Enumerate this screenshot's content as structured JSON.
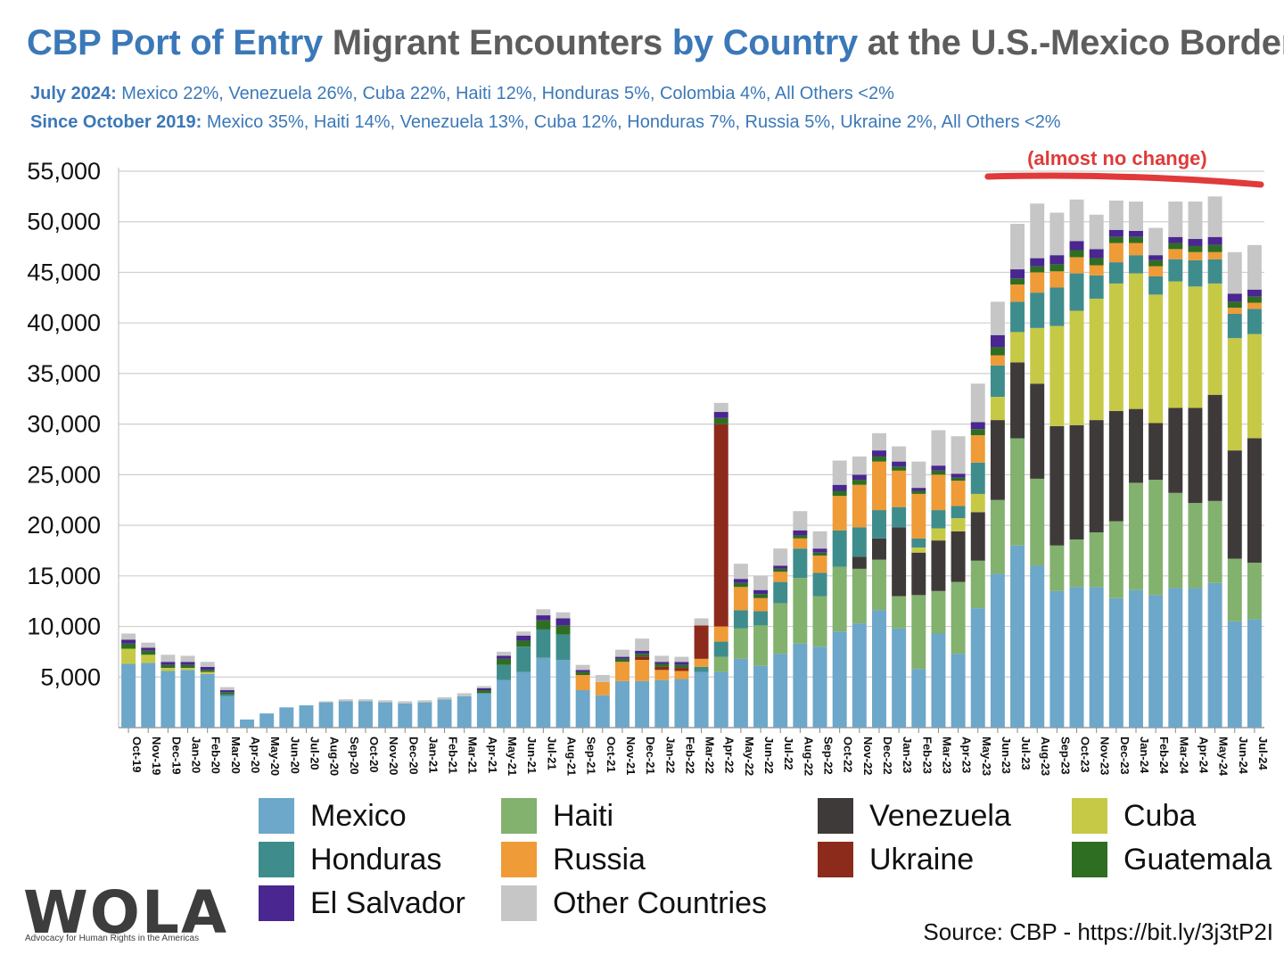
{
  "title": {
    "part1": "CBP Port of Entry",
    "part2": " Migrant Encounters ",
    "part3": "by Country",
    "part4": " at the U.S.-Mexico Border"
  },
  "subtitles": [
    {
      "label": "July 2024:",
      "text": " Mexico 22%, Venezuela 26%, Cuba 22%, Haiti 12%, Honduras 5%, Colombia 4%, All Others <2%"
    },
    {
      "label": "Since October 2019:",
      "text": " Mexico 35%, Haiti 14%, Venezuela 13%, Cuba 12%, Honduras 7%, Russia 5%, Ukraine 2%, All Others <2%"
    }
  ],
  "annotation": {
    "text": "(almost no change)",
    "color": "#e03a3a"
  },
  "source": "Source: CBP - https://bit.ly/3j3tP2I",
  "logo": {
    "word": "WOLA",
    "tagline": "Advocacy for Human Rights in the Americas"
  },
  "chart_data": {
    "type": "bar",
    "stacked": true,
    "ylim": [
      0,
      55000
    ],
    "yticks": [
      5000,
      10000,
      15000,
      20000,
      25000,
      30000,
      35000,
      40000,
      45000,
      50000,
      55000
    ],
    "ytick_labels": [
      "5,000",
      "10,000",
      "15,000",
      "20,000",
      "25,000",
      "30,000",
      "35,000",
      "40,000",
      "45,000",
      "50,000",
      "55,000"
    ],
    "legend_position": "bottom",
    "grid": "horizontal",
    "categories": [
      "Oct-19",
      "Nov-19",
      "Dec-19",
      "Jan-20",
      "Feb-20",
      "Mar-20",
      "Apr-20",
      "May-20",
      "Jun-20",
      "Jul-20",
      "Aug-20",
      "Sep-20",
      "Oct-20",
      "Nov-20",
      "Dec-20",
      "Jan-21",
      "Feb-21",
      "Mar-21",
      "Apr-21",
      "May-21",
      "Jun-21",
      "Jul-21",
      "Aug-21",
      "Sep-21",
      "Oct-21",
      "Nov-21",
      "Dec-21",
      "Jan-22",
      "Feb-22",
      "Mar-22",
      "Apr-22",
      "May-22",
      "Jun-22",
      "Jul-22",
      "Aug-22",
      "Sep-22",
      "Oct-22",
      "Nov-22",
      "Dec-22",
      "Jan-23",
      "Feb-23",
      "Mar-23",
      "Apr-23",
      "May-23",
      "Jun-23",
      "Jul-23",
      "Aug-23",
      "Sep-23",
      "Oct-23",
      "Nov-23",
      "Dec-23",
      "Jan-24",
      "Feb-24",
      "Mar-24",
      "Apr-24",
      "May-24",
      "Jun-24",
      "Jul-24"
    ],
    "series": [
      {
        "name": "Mexico",
        "color": "#6da7c9",
        "values": [
          6300,
          6400,
          5600,
          5700,
          5300,
          3100,
          800,
          1400,
          2000,
          2200,
          2500,
          2600,
          2600,
          2500,
          2400,
          2500,
          2800,
          3100,
          3400,
          4700,
          5500,
          6900,
          6700,
          3700,
          3200,
          4600,
          4600,
          4700,
          4800,
          5500,
          5500,
          6800,
          6100,
          7300,
          8300,
          8000,
          9500,
          10300,
          11600,
          9800,
          5800,
          9300,
          7300,
          11800,
          15200,
          18000,
          16000,
          13500,
          13900,
          13900,
          12800,
          13600,
          13100,
          13800,
          13800,
          14300,
          10500,
          10700
        ]
      },
      {
        "name": "Haiti",
        "color": "#83b16e",
        "values": [
          0,
          0,
          0,
          0,
          0,
          0,
          0,
          0,
          0,
          0,
          0,
          0,
          0,
          0,
          0,
          0,
          0,
          0,
          0,
          0,
          0,
          0,
          0,
          0,
          0,
          0,
          0,
          0,
          0,
          0,
          1500,
          3000,
          4000,
          5000,
          6500,
          5000,
          6400,
          5400,
          5000,
          3200,
          7300,
          4200,
          7100,
          4700,
          7300,
          10600,
          8600,
          4500,
          4700,
          5400,
          7600,
          10600,
          11400,
          9400,
          8400,
          8100,
          6200,
          5600
        ]
      },
      {
        "name": "Venezuela",
        "color": "#3f3a3a",
        "values": [
          0,
          0,
          0,
          0,
          0,
          0,
          0,
          0,
          0,
          0,
          0,
          0,
          0,
          0,
          0,
          0,
          0,
          0,
          0,
          0,
          0,
          0,
          0,
          0,
          0,
          0,
          0,
          0,
          0,
          0,
          0,
          0,
          0,
          0,
          0,
          0,
          0,
          1200,
          2100,
          6800,
          4200,
          5000,
          5000,
          4800,
          7900,
          7500,
          9400,
          11800,
          11300,
          11100,
          10900,
          7300,
          5600,
          8400,
          9400,
          10500,
          10700,
          12300
        ]
      },
      {
        "name": "Cuba",
        "color": "#c6c946",
        "values": [
          1500,
          800,
          300,
          200,
          200,
          0,
          0,
          0,
          0,
          0,
          0,
          0,
          0,
          0,
          0,
          0,
          0,
          0,
          0,
          0,
          0,
          0,
          0,
          0,
          0,
          0,
          0,
          0,
          0,
          0,
          0,
          0,
          0,
          0,
          0,
          0,
          0,
          0,
          0,
          0,
          500,
          1200,
          1300,
          1800,
          2300,
          3000,
          5500,
          9900,
          11300,
          12000,
          12600,
          13400,
          12700,
          12500,
          12000,
          11000,
          11100,
          10300
        ]
      },
      {
        "name": "Honduras",
        "color": "#3f8c8c",
        "values": [
          0,
          0,
          0,
          0,
          0,
          200,
          0,
          0,
          0,
          0,
          0,
          0,
          0,
          0,
          0,
          0,
          0,
          0,
          0,
          1500,
          2500,
          2800,
          2500,
          0,
          0,
          0,
          0,
          0,
          0,
          500,
          1500,
          1800,
          1400,
          2100,
          2900,
          2300,
          3600,
          2900,
          2800,
          2000,
          900,
          1800,
          1200,
          3100,
          3100,
          3000,
          3500,
          3800,
          3700,
          2300,
          2100,
          1800,
          1800,
          2200,
          2600,
          2400,
          2400,
          2500
        ]
      },
      {
        "name": "Russia",
        "color": "#ef9b37",
        "values": [
          0,
          0,
          0,
          0,
          0,
          0,
          0,
          0,
          0,
          0,
          0,
          0,
          0,
          0,
          0,
          0,
          0,
          0,
          0,
          0,
          0,
          0,
          0,
          1500,
          1300,
          1900,
          2100,
          1000,
          800,
          800,
          1500,
          2300,
          1300,
          1000,
          1000,
          1700,
          3400,
          4200,
          4800,
          3600,
          4400,
          3500,
          2500,
          2700,
          1000,
          1700,
          2000,
          1600,
          1600,
          1000,
          1900,
          1200,
          1000,
          1000,
          800,
          700,
          600,
          600
        ]
      },
      {
        "name": "Ukraine",
        "color": "#8c2a1b",
        "values": [
          0,
          0,
          0,
          0,
          0,
          0,
          0,
          0,
          0,
          0,
          0,
          0,
          0,
          0,
          0,
          0,
          0,
          0,
          0,
          0,
          0,
          0,
          0,
          0,
          0,
          0,
          300,
          300,
          300,
          3300,
          20000,
          0,
          0,
          0,
          0,
          0,
          0,
          0,
          0,
          0,
          0,
          0,
          0,
          0,
          0,
          0,
          0,
          0,
          0,
          0,
          0,
          0,
          0,
          0,
          0,
          0,
          0,
          0
        ]
      },
      {
        "name": "Guatemala",
        "color": "#2e6e22",
        "values": [
          500,
          400,
          300,
          300,
          200,
          200,
          0,
          0,
          0,
          0,
          0,
          0,
          0,
          0,
          0,
          0,
          0,
          0,
          300,
          600,
          600,
          900,
          900,
          300,
          0,
          300,
          300,
          300,
          300,
          0,
          600,
          400,
          400,
          300,
          300,
          300,
          500,
          500,
          500,
          400,
          300,
          400,
          300,
          600,
          800,
          600,
          600,
          700,
          700,
          700,
          600,
          600,
          600,
          600,
          600,
          700,
          600,
          600
        ]
      },
      {
        "name": "El Salvador",
        "color": "#4a2690",
        "values": [
          400,
          300,
          300,
          300,
          300,
          200,
          0,
          0,
          0,
          0,
          0,
          0,
          0,
          0,
          0,
          0,
          0,
          0,
          200,
          300,
          500,
          500,
          700,
          200,
          0,
          200,
          300,
          200,
          300,
          0,
          600,
          400,
          400,
          300,
          500,
          400,
          600,
          500,
          600,
          500,
          300,
          500,
          400,
          700,
          1200,
          900,
          800,
          900,
          900,
          900,
          700,
          600,
          500,
          600,
          700,
          800,
          800,
          700
        ]
      },
      {
        "name": "Other Countries",
        "color": "#c6c6c6",
        "values": [
          600,
          500,
          700,
          600,
          500,
          300,
          0,
          0,
          0,
          0,
          100,
          200,
          200,
          200,
          200,
          200,
          200,
          300,
          200,
          400,
          400,
          600,
          600,
          500,
          700,
          700,
          1200,
          600,
          500,
          700,
          900,
          1500,
          1400,
          1700,
          1900,
          1700,
          2400,
          1800,
          1700,
          1500,
          2600,
          3500,
          3700,
          3800,
          3300,
          4500,
          5400,
          4200,
          4100,
          3400,
          2900,
          2900,
          2700,
          3500,
          3700,
          4000,
          4100,
          4400
        ]
      }
    ]
  }
}
